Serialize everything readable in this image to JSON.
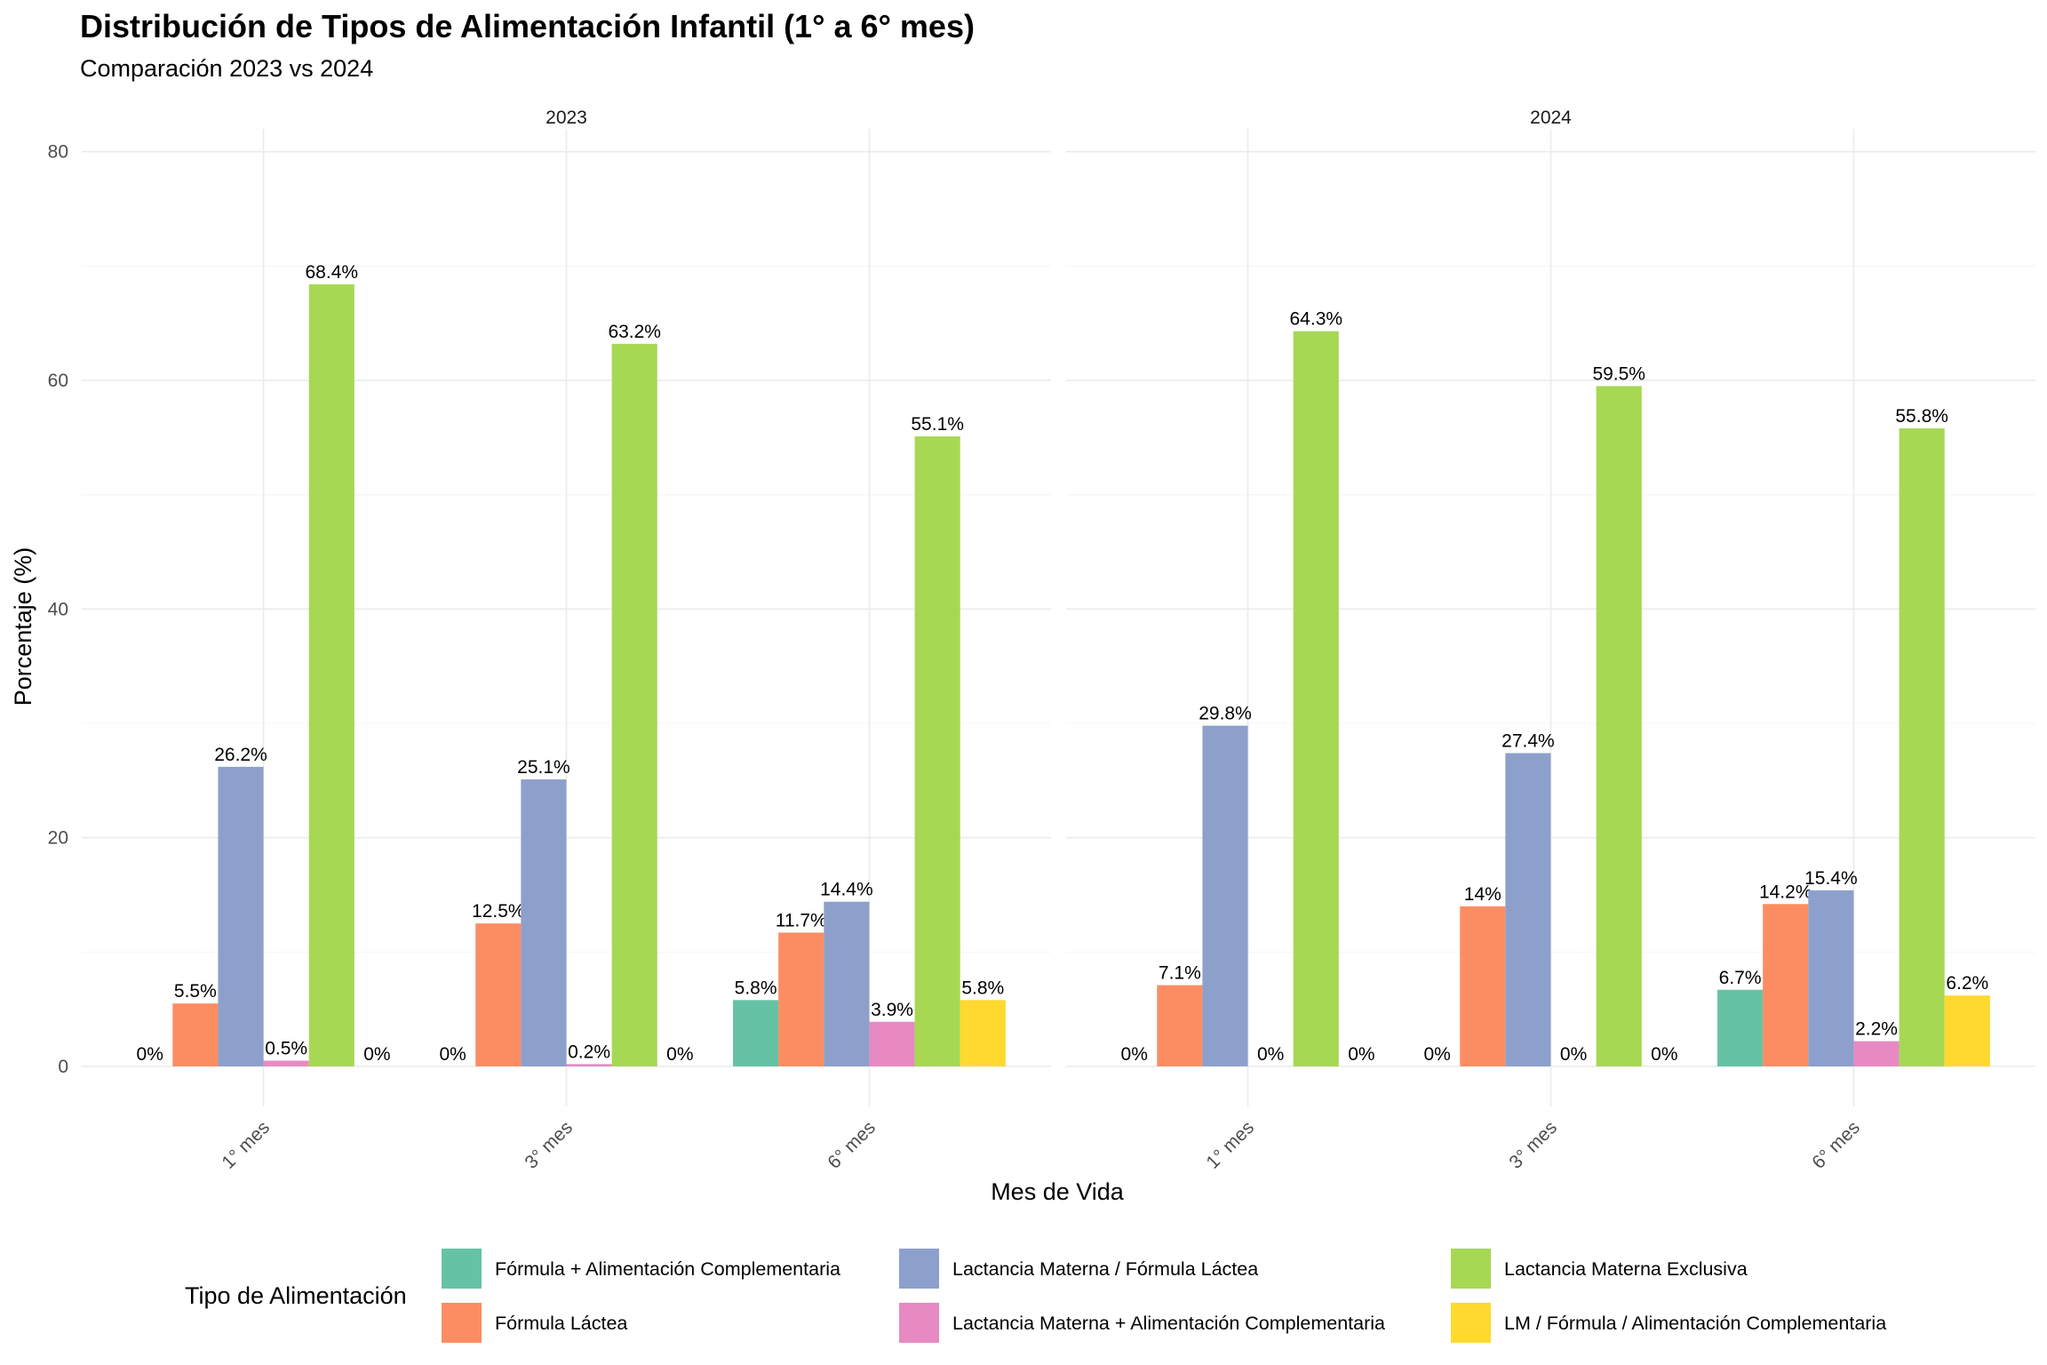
{
  "chart_data": {
    "type": "bar",
    "title": "Distribución de Tipos de Alimentación Infantil (1° a 6° mes)",
    "subtitle": "Comparación 2023 vs 2024",
    "xlabel": "Mes de Vida",
    "ylabel": "Porcentaje (%)",
    "ylim": [
      -3.5,
      82
    ],
    "yticks": [
      0,
      20,
      40,
      60,
      80
    ],
    "grid": true,
    "legend_title": "Tipo de Alimentación",
    "legend_position": "bottom",
    "categories": [
      "1° mes",
      "3° mes",
      "6° mes"
    ],
    "series_info": [
      {
        "name": "Fórmula + Alimentación Complementaria",
        "color": "#66c2a5"
      },
      {
        "name": "Fórmula Láctea",
        "color": "#fc8d62"
      },
      {
        "name": "Lactancia Materna / Fórmula Láctea",
        "color": "#8da0cb"
      },
      {
        "name": "Lactancia Materna + Alimentación Complementaria",
        "color": "#e78ac3"
      },
      {
        "name": "Lactancia Materna Exclusiva",
        "color": "#a6d854"
      },
      {
        "name": "LM / Fórmula / Alimentación Complementaria",
        "color": "#ffd92f"
      }
    ],
    "panels": [
      {
        "label": "2023",
        "groups": [
          {
            "category": "1° mes",
            "values": [
              null,
              5.5,
              26.2,
              0.5,
              68.4,
              null
            ],
            "labels": [
              "0%",
              "5.5%",
              "26.2%",
              "0.5%",
              "68.4%",
              "0%"
            ]
          },
          {
            "category": "3° mes",
            "values": [
              null,
              12.5,
              25.1,
              0.2,
              63.2,
              null
            ],
            "labels": [
              "0%",
              "12.5%",
              "25.1%",
              "0.2%",
              "63.2%",
              "0%"
            ]
          },
          {
            "category": "6° mes",
            "values": [
              5.8,
              11.7,
              14.4,
              3.9,
              55.1,
              5.8
            ],
            "labels": [
              "5.8%",
              "11.7%",
              "14.4%",
              "3.9%",
              "55.1%",
              "5.8%"
            ]
          }
        ]
      },
      {
        "label": "2024",
        "groups": [
          {
            "category": "1° mes",
            "values": [
              null,
              7.1,
              29.8,
              null,
              64.3,
              null
            ],
            "labels": [
              "0%",
              "7.1%",
              "29.8%",
              "0%",
              "64.3%",
              "0%"
            ]
          },
          {
            "category": "3° mes",
            "values": [
              null,
              14.0,
              27.4,
              null,
              59.5,
              null
            ],
            "labels": [
              "0%",
              "14%",
              "27.4%",
              "0%",
              "59.5%",
              "0%"
            ]
          },
          {
            "category": "6° mes",
            "values": [
              6.7,
              14.2,
              15.4,
              2.2,
              55.8,
              6.2
            ],
            "labels": [
              "6.7%",
              "14.2%",
              "15.4%",
              "2.2%",
              "55.8%",
              "6.2%"
            ]
          }
        ]
      }
    ]
  }
}
